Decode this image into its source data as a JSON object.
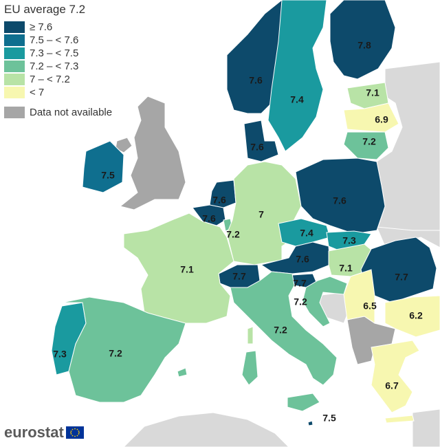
{
  "colors": {
    "ge_7_6": "#0d4a6b",
    "range_7_5": "#0f6f8f",
    "range_7_3": "#1a9a9f",
    "range_7_2": "#6dc29a",
    "range_7_0": "#b8e3a6",
    "lt_7": "#f7f7b0",
    "na": "#a6a6a6",
    "nonEU": "#d9d9d9",
    "sea": "#ffffff"
  },
  "legend": {
    "title": "EU average 7.2",
    "items": [
      {
        "label": "≥ 7.6",
        "color": "#0d4a6b"
      },
      {
        "label": "7.5 – < 7.6",
        "color": "#0f6f8f"
      },
      {
        "label": "7.3 – < 7.5",
        "color": "#1a9a9f"
      },
      {
        "label": "7.2 – < 7.3",
        "color": "#6dc29a"
      },
      {
        "label": "7 – < 7.2",
        "color": "#b8e3a6"
      },
      {
        "label": "< 7",
        "color": "#f7f7b0"
      }
    ],
    "na_label": "Data not available"
  },
  "countries": [
    {
      "id": "norway",
      "value": "7.6"
    },
    {
      "id": "sweden",
      "value": "7.4"
    },
    {
      "id": "finland",
      "value": "7.8"
    },
    {
      "id": "estonia",
      "value": "7.1"
    },
    {
      "id": "latvia",
      "value": "6.9"
    },
    {
      "id": "lithuania",
      "value": "7.2"
    },
    {
      "id": "denmark",
      "value": "7.6"
    },
    {
      "id": "ireland",
      "value": "7.5"
    },
    {
      "id": "netherlands",
      "value": "7.6"
    },
    {
      "id": "belgium",
      "value": "7.6"
    },
    {
      "id": "luxembourg",
      "value": "7.2"
    },
    {
      "id": "germany",
      "value": "7"
    },
    {
      "id": "poland",
      "value": "7.6"
    },
    {
      "id": "czechia",
      "value": "7.4"
    },
    {
      "id": "slovakia",
      "value": "7.3"
    },
    {
      "id": "austria",
      "value": "7.6"
    },
    {
      "id": "hungary",
      "value": "7.1"
    },
    {
      "id": "switzerland",
      "value": "7.7"
    },
    {
      "id": "slovenia",
      "value": "7.7"
    },
    {
      "id": "croatia",
      "value": "7.2"
    },
    {
      "id": "france",
      "value": "7.1"
    },
    {
      "id": "romania",
      "value": "7.7"
    },
    {
      "id": "serbia",
      "value": "6.5"
    },
    {
      "id": "bulgaria",
      "value": "6.2"
    },
    {
      "id": "italy",
      "value": "7.2"
    },
    {
      "id": "portugal",
      "value": "7.3"
    },
    {
      "id": "spain",
      "value": "7.2"
    },
    {
      "id": "greece",
      "value": "6.7"
    },
    {
      "id": "malta",
      "value": "7.5"
    }
  ],
  "footer": {
    "logo_text": "eurostat"
  }
}
